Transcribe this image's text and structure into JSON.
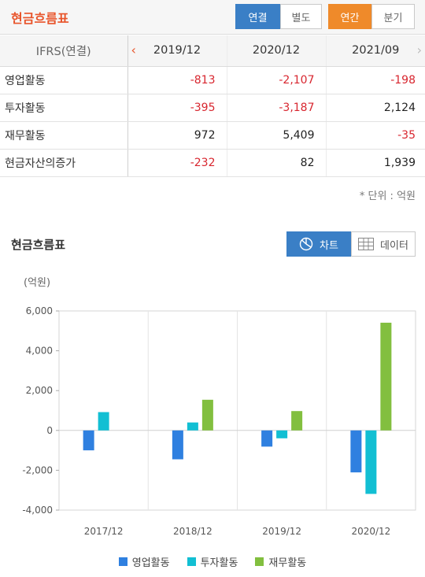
{
  "header": {
    "title": "현금흐름표",
    "buttons": [
      "연결",
      "별도",
      "연간",
      "분기"
    ]
  },
  "table": {
    "header_label": "IFRS(연결)",
    "periods": [
      "2019/12",
      "2020/12",
      "2021/09"
    ],
    "rows": [
      {
        "label": "영업활동",
        "values": [
          "-813",
          "-2,107",
          "-198"
        ]
      },
      {
        "label": "투자활동",
        "values": [
          "-395",
          "-3,187",
          "2,124"
        ]
      },
      {
        "label": "재무활동",
        "values": [
          "972",
          "5,409",
          "-35"
        ]
      },
      {
        "label": "현금자산의증가",
        "values": [
          "-232",
          "82",
          "1,939"
        ]
      }
    ],
    "unit_note": "* 단위 : 억원"
  },
  "chart_section": {
    "title": "현금흐름표",
    "toggle_chart": "차트",
    "toggle_data": "데이터"
  },
  "chart_data": {
    "type": "bar",
    "unit_label": "(억원)",
    "categories": [
      "2017/12",
      "2018/12",
      "2019/12",
      "2020/12"
    ],
    "series": [
      {
        "name": "영업활동",
        "color": "#2f80e0",
        "values": [
          -1000,
          -1450,
          -813,
          -2107
        ]
      },
      {
        "name": "투자활동",
        "color": "#12bfd3",
        "values": [
          920,
          400,
          -395,
          -3187
        ]
      },
      {
        "name": "재무활동",
        "color": "#82bf3f",
        "values": [
          0,
          1540,
          972,
          5409
        ]
      }
    ],
    "ylim": [
      -4000,
      6000
    ],
    "yticks": [
      "6,000",
      "4,000",
      "2,000",
      "0",
      "-2,000",
      "-4,000"
    ],
    "ytick_values": [
      6000,
      4000,
      2000,
      0,
      -2000,
      -4000
    ]
  }
}
